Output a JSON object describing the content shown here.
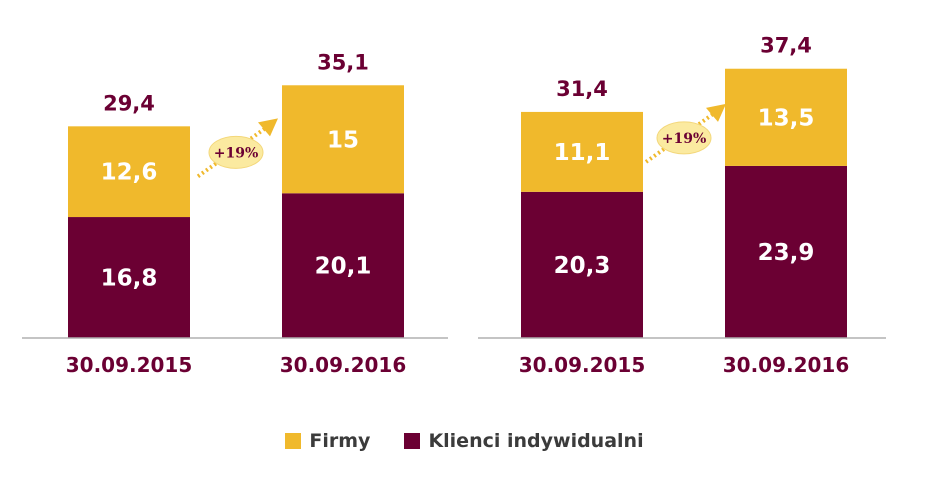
{
  "chart_data": [
    {
      "type": "bar",
      "stacked": true,
      "categories": [
        "30.09.2015",
        "30.09.2016"
      ],
      "series": [
        {
          "name": "Klienci indywidualni",
          "values": [
            16.8,
            20.1
          ],
          "labels": [
            "16,8",
            "20,1"
          ]
        },
        {
          "name": "Firmy",
          "values": [
            12.6,
            15
          ],
          "labels": [
            "12,6",
            "15"
          ]
        }
      ],
      "totals": [
        29.4,
        35.1
      ],
      "total_labels": [
        "29,4",
        "35,1"
      ],
      "growth_label": "+19%",
      "ylim": [
        0,
        40
      ]
    },
    {
      "type": "bar",
      "stacked": true,
      "categories": [
        "30.09.2015",
        "30.09.2016"
      ],
      "series": [
        {
          "name": "Klienci indywidualni",
          "values": [
            20.3,
            23.9
          ],
          "labels": [
            "20,3",
            "23,9"
          ]
        },
        {
          "name": "Firmy",
          "values": [
            11.1,
            13.5
          ],
          "labels": [
            "11,1",
            "13,5"
          ]
        }
      ],
      "totals": [
        31.4,
        37.4
      ],
      "total_labels": [
        "31,4",
        "37,4"
      ],
      "growth_label": "+19%",
      "ylim": [
        0,
        40
      ]
    }
  ],
  "colors": {
    "Klienci indywidualni": "#6b0033",
    "Firmy": "#f0b92c",
    "axis": "#b0b0b0",
    "bubble": "#fbeaa0",
    "arrow": "#f0b92c"
  },
  "legend": [
    {
      "label": "Firmy",
      "color": "#f0b92c"
    },
    {
      "label": "Klienci indywidualni",
      "color": "#6b0033"
    }
  ]
}
